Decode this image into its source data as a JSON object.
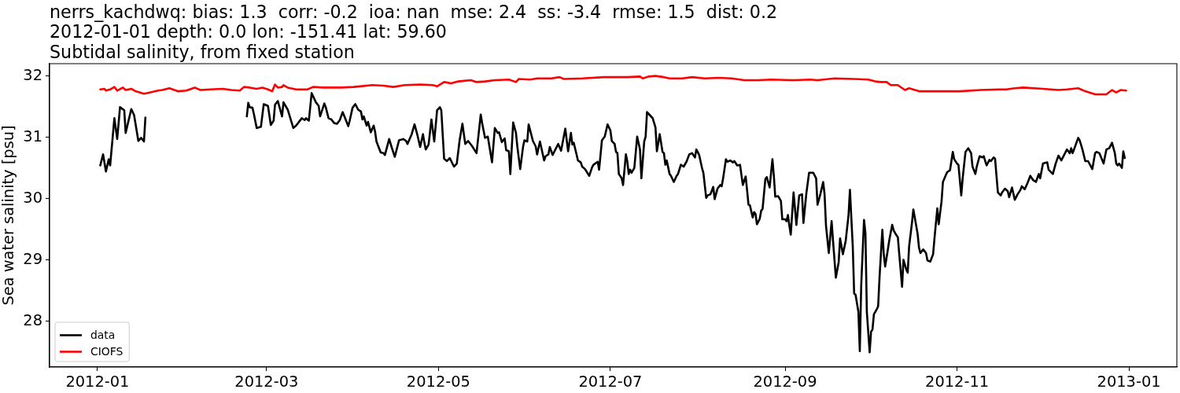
{
  "chart_data": {
    "type": "line",
    "title": "nerrs_kachdwq: bias: 1.3  corr: -0.2  ioa: nan  mse: 2.4  ss: -3.4  rmse: 1.5  dist: 0.2\n2012-01-01 depth: 0.0 lon: -151.41 lat: 59.60\nSubtidal salinity, from fixed station",
    "ylabel": "Sea water salinity [psu]",
    "xlim": [
      "2011-12-15",
      "2013-01-18"
    ],
    "xticks": [
      "2012-01",
      "2012-03",
      "2012-05",
      "2012-07",
      "2012-09",
      "2012-11",
      "2013-01"
    ],
    "ylim": [
      27.25,
      32.2
    ],
    "yticks": [
      28,
      29,
      30,
      31,
      32
    ],
    "legend": "bottom left",
    "series": [
      {
        "name": "data",
        "color": "#000000",
        "x": [
          "2012-01-02",
          "2012-01-03",
          "2012-01-04",
          "2012-01-05",
          "2012-01-05T12:00",
          "2012-01-07",
          "2012-01-08",
          "2012-01-09",
          "2012-01-10T12:00",
          "2012-01-11",
          "2012-01-13",
          "2012-01-14",
          "2012-01-15T12:00",
          "2012-01-16T12:00",
          "2012-01-17T12:00",
          "2012-01-18",
          "2012-02-05",
          "2012-02-23",
          "2012-02-23T12:00",
          "2012-02-24",
          "2012-02-25",
          "2012-02-25T12:00",
          "2012-02-26T12:00",
          "2012-02-28",
          "2012-02-29",
          "2012-03-01T12:00",
          "2012-03-02T12:00",
          "2012-03-03T12:00",
          "2012-03-04",
          "2012-03-05",
          "2012-03-06T12:00",
          "2012-03-07",
          "2012-03-08T12:00",
          "2012-03-10T12:00",
          "2012-03-11T12:00",
          "2012-03-13T12:00",
          "2012-03-14T12:00",
          "2012-03-15",
          "2012-03-16",
          "2012-03-17",
          "2012-03-18T12:00",
          "2012-03-19T12:00",
          "2012-03-20",
          "2012-03-21T12:00",
          "2012-03-22",
          "2012-03-23",
          "2012-03-24",
          "2012-03-25",
          "2012-03-26",
          "2012-03-27",
          "2012-03-28",
          "2012-03-30",
          "2012-03-30T12:00",
          "2012-03-31T12:00",
          "2012-04-01T12:00",
          "2012-04-02T12:00",
          "2012-04-03T12:00",
          "2012-04-04",
          "2012-04-04T12:00",
          "2012-04-05T12:00",
          "2012-04-06",
          "2012-04-07",
          "2012-04-08",
          "2012-04-08T12:00",
          "2012-04-09",
          "2012-04-10T12:00",
          "2012-04-11T12:00",
          "2012-04-12",
          "2012-04-13T12:00",
          "2012-04-14T12:00",
          "2012-04-15T12:00",
          "2012-04-17",
          "2012-04-18T12:00",
          "2012-04-19T12:00",
          "2012-04-20",
          "2012-04-21T12:00",
          "2012-04-22T12:00",
          "2012-04-23T12:00",
          "2012-04-24T12:00",
          "2012-04-25T12:00",
          "2012-04-26",
          "2012-04-26T12:00",
          "2012-04-27T12:00",
          "2012-04-28T12:00",
          "2012-04-29T12:00",
          "2012-04-30T12:00",
          "2012-05-01T12:00",
          "2012-05-02",
          "2012-05-03",
          "2012-05-04",
          "2012-05-05",
          "2012-05-06T12:00",
          "2012-05-07T12:00",
          "2012-05-08T12:00",
          "2012-05-09T12:00",
          "2012-05-10T12:00",
          "2012-05-11T12:00",
          "2012-05-13",
          "2012-05-14T12:00",
          "2012-05-16",
          "2012-05-16T12:00",
          "2012-05-17T12:00",
          "2012-05-18T12:00",
          "2012-05-20",
          "2012-05-21",
          "2012-05-22",
          "2012-05-22T12:00",
          "2012-05-23T12:00",
          "2012-05-24T12:00",
          "2012-05-25",
          "2012-05-26",
          "2012-05-26T12:00",
          "2012-05-27T12:00",
          "2012-05-28T12:00",
          "2012-05-29",
          "2012-05-30",
          "2012-05-31",
          "2012-05-31T12:00",
          "2012-06-01T12:00",
          "2012-06-02",
          "2012-06-03T12:00",
          "2012-06-04T12:00",
          "2012-06-05",
          "2012-06-06",
          "2012-06-07T12:00",
          "2012-06-08",
          "2012-06-09",
          "2012-06-09T12:00",
          "2012-06-10T12:00",
          "2012-06-11T12:00",
          "2012-06-12T12:00",
          "2012-06-13T12:00",
          "2012-06-15",
          "2012-06-16",
          "2012-06-17",
          "2012-06-17T12:00",
          "2012-06-18",
          "2012-06-19T12:00",
          "2012-06-20T12:00",
          "2012-06-21",
          "2012-06-22",
          "2012-06-23T12:00",
          "2012-06-24T12:00",
          "2012-06-25",
          "2012-06-26T12:00",
          "2012-06-27",
          "2012-06-28",
          "2012-06-29",
          "2012-06-30",
          "2012-07-01",
          "2012-07-01T12:00",
          "2012-07-02T12:00",
          "2012-07-03",
          "2012-07-03T12:00",
          "2012-07-04",
          "2012-07-05",
          "2012-07-05T12:00",
          "2012-07-06T12:00",
          "2012-07-07",
          "2012-07-07T12:00",
          "2012-07-08",
          "2012-07-08T12:00",
          "2012-07-09T12:00",
          "2012-07-10T12:00",
          "2012-07-11T12:00",
          "2012-07-12",
          "2012-07-13",
          "2012-07-13T12:00",
          "2012-07-14",
          "2012-07-15",
          "2012-07-16",
          "2012-07-17",
          "2012-07-17T12:00",
          "2012-07-18T12:00",
          "2012-07-19T12:00",
          "2012-07-20",
          "2012-07-20T12:00",
          "2012-07-21",
          "2012-07-22",
          "2012-07-22T12:00",
          "2012-07-23T12:00",
          "2012-07-24T12:00",
          "2012-07-25",
          "2012-07-26",
          "2012-07-27",
          "2012-07-28",
          "2012-07-29",
          "2012-07-30",
          "2012-07-31",
          "2012-07-31T12:00",
          "2012-08-01T12:00",
          "2012-08-02T12:00",
          "2012-08-03",
          "2012-08-04",
          "2012-08-04T12:00",
          "2012-08-05T12:00",
          "2012-08-06T12:00",
          "2012-08-07",
          "2012-08-08",
          "2012-08-09",
          "2012-08-09T12:00",
          "2012-08-10",
          "2012-08-11",
          "2012-08-11T12:00",
          "2012-08-12T12:00",
          "2012-08-13T12:00",
          "2012-08-14",
          "2012-08-15",
          "2012-08-16",
          "2012-08-17",
          "2012-08-18",
          "2012-08-18T12:00",
          "2012-08-19",
          "2012-08-19T12:00",
          "2012-08-20T12:00",
          "2012-08-21",
          "2012-08-21T12:00",
          "2012-08-22",
          "2012-08-23",
          "2012-08-23T12:00",
          "2012-08-24",
          "2012-08-25",
          "2012-08-25T12:00",
          "2012-08-26T12:00",
          "2012-08-27T12:00",
          "2012-08-28",
          "2012-08-28T12:00",
          "2012-08-29T12:00",
          "2012-08-30T12:00",
          "2012-08-31",
          "2012-09-01",
          "2012-09-01T12:00",
          "2012-09-02",
          "2012-09-02T12:00",
          "2012-09-03",
          "2012-09-04",
          "2012-09-05",
          "2012-09-06",
          "2012-09-07",
          "2012-09-07T12:00",
          "2012-09-08T12:00",
          "2012-09-09T12:00",
          "2012-09-11",
          "2012-09-12",
          "2012-09-12T12:00",
          "2012-09-13T12:00",
          "2012-09-14T12:00",
          "2012-09-15",
          "2012-09-15T12:00",
          "2012-09-16T12:00",
          "2012-09-17T12:00",
          "2012-09-18",
          "2012-09-19",
          "2012-09-20",
          "2012-09-20T12:00",
          "2012-09-21T12:00",
          "2012-09-22T12:00",
          "2012-09-23T12:00",
          "2012-09-24",
          "2012-09-25",
          "2012-09-25T12:00",
          "2012-09-26",
          "2012-09-27",
          "2012-09-27T12:00",
          "2012-09-28",
          "2012-09-29",
          "2012-09-29T12:00",
          "2012-09-30",
          "2012-10-01",
          "2012-10-01T12:00",
          "2012-10-02",
          "2012-10-02T12:00",
          "2012-10-03T12:00",
          "2012-10-04",
          "2012-10-04T12:00",
          "2012-10-05T12:00",
          "2012-10-06",
          "2012-10-06T12:00",
          "2012-10-07T12:00",
          "2012-10-08",
          "2012-10-09",
          "2012-10-09T12:00",
          "2012-10-10T12:00",
          "2012-10-11",
          "2012-10-11T12:00",
          "2012-10-12T12:00",
          "2012-10-13",
          "2012-10-14",
          "2012-10-14T12:00",
          "2012-10-15",
          "2012-10-16",
          "2012-10-16T12:00",
          "2012-10-17T12:00",
          "2012-10-18",
          "2012-10-18T12:00",
          "2012-10-19",
          "2012-10-20",
          "2012-10-21",
          "2012-10-21T12:00",
          "2012-10-22T12:00",
          "2012-10-23T12:00",
          "2012-10-24",
          "2012-10-25",
          "2012-10-25T12:00",
          "2012-10-26T12:00",
          "2012-10-27",
          "2012-10-28",
          "2012-10-28T12:00",
          "2012-10-29T12:00",
          "2012-10-30T12:00",
          "2012-10-31",
          "2012-11-01",
          "2012-11-01T12:00",
          "2012-11-02T12:00",
          "2012-11-03",
          "2012-11-04",
          "2012-11-05",
          "2012-11-06",
          "2012-11-06T12:00",
          "2012-11-07T12:00",
          "2012-11-08",
          "2012-11-09",
          "2012-11-10",
          "2012-11-10T12:00",
          "2012-11-11",
          "2012-11-11T12:00",
          "2012-11-12T12:00",
          "2012-11-13",
          "2012-11-14",
          "2012-11-14T12:00",
          "2012-11-15",
          "2012-11-15T12:00",
          "2012-11-16T12:00",
          "2012-11-17",
          "2012-11-18",
          "2012-11-19",
          "2012-11-19T12:00",
          "2012-11-20T12:00",
          "2012-11-21T12:00",
          "2012-11-22T12:00",
          "2012-11-23T12:00",
          "2012-11-24",
          "2012-11-25",
          "2012-11-26",
          "2012-11-27",
          "2012-11-28",
          "2012-11-29",
          "2012-11-30",
          "2012-11-30T12:00",
          "2012-12-01T12:00",
          "2012-12-03",
          "2012-12-03T12:00",
          "2012-12-05",
          "2012-12-06",
          "2012-12-07",
          "2012-12-08",
          "2012-12-09",
          "2012-12-10",
          "2012-12-11",
          "2012-12-11T12:00",
          "2012-12-12",
          "2012-12-12T12:00",
          "2012-12-14",
          "2012-12-14T12:00",
          "2012-12-15T12:00",
          "2012-12-16T12:00",
          "2012-12-17T12:00",
          "2012-12-19",
          "2012-12-20",
          "2012-12-20T12:00",
          "2012-12-21T12:00",
          "2012-12-22T12:00",
          "2012-12-23",
          "2012-12-24",
          "2012-12-25",
          "2012-12-26",
          "2012-12-27",
          "2012-12-27T12:00",
          "2012-12-28",
          "2012-12-28T12:00",
          "2012-12-29T12:00",
          "2012-12-30",
          "2012-12-30T12:00"
        ],
        "values": [
          30.54,
          30.72,
          30.44,
          30.64,
          30.54,
          31.31,
          30.97,
          31.49,
          31.44,
          31.07,
          31.46,
          31.36,
          30.94,
          30.99,
          30.93,
          31.32,
          null,
          31.34,
          31.56,
          31.49,
          31.48,
          31.38,
          31.15,
          31.17,
          31.54,
          31.51,
          31.2,
          31.27,
          31.53,
          31.59,
          31.34,
          31.57,
          31.45,
          31.15,
          31.19,
          31.31,
          31.28,
          31.31,
          31.27,
          31.72,
          31.57,
          31.51,
          31.34,
          31.55,
          31.49,
          31.31,
          31.29,
          31.23,
          31.22,
          31.28,
          31.41,
          31.18,
          31.27,
          31.48,
          31.54,
          31.45,
          31.42,
          31.29,
          31.34,
          31.19,
          31.25,
          31.08,
          31.19,
          31.09,
          30.93,
          30.75,
          30.74,
          30.71,
          30.97,
          30.82,
          30.68,
          30.95,
          30.97,
          30.94,
          30.89,
          31.05,
          31.21,
          31.04,
          30.84,
          31.05,
          30.91,
          30.8,
          30.88,
          31.29,
          30.93,
          31.44,
          31.49,
          31.44,
          30.65,
          30.61,
          30.66,
          30.52,
          30.57,
          30.95,
          31.22,
          30.89,
          30.94,
          30.85,
          30.74,
          31.37,
          31.23,
          30.99,
          31.01,
          30.59,
          31.15,
          31.07,
          31.08,
          30.92,
          30.98,
          30.79,
          30.77,
          30.4,
          31.24,
          31.07,
          30.84,
          30.48,
          30.84,
          30.95,
          30.93,
          31.21,
          30.94,
          30.85,
          30.72,
          30.93,
          30.62,
          30.69,
          30.72,
          30.84,
          30.71,
          30.8,
          30.89,
          30.78,
          31.14,
          30.77,
          31.07,
          30.88,
          30.91,
          30.62,
          30.59,
          30.52,
          30.48,
          30.37,
          30.51,
          30.55,
          30.6,
          30.47,
          30.95,
          31.01,
          31.21,
          31.11,
          30.94,
          30.89,
          30.76,
          30.74,
          30.4,
          30.33,
          30.22,
          30.72,
          30.61,
          30.4,
          30.47,
          30.42,
          30.5,
          31.01,
          30.8,
          30.33,
          30.93,
          31.01,
          31.41,
          31.36,
          31.31,
          31.16,
          30.77,
          31.05,
          30.76,
          30.74,
          30.55,
          30.62,
          30.4,
          30.37,
          30.27,
          30.37,
          30.4,
          30.55,
          30.52,
          30.6,
          30.72,
          30.74,
          30.67,
          30.8,
          30.71,
          30.5,
          30.42,
          30.01,
          30.05,
          30.07,
          30.19,
          29.99,
          30.16,
          30.22,
          30.2,
          30.33,
          30.64,
          30.6,
          30.62,
          30.59,
          30.61,
          30.54,
          30.55,
          30.22,
          30.36,
          30.14,
          29.9,
          29.89,
          29.69,
          29.78,
          29.75,
          29.58,
          29.67,
          29.8,
          29.83,
          30.32,
          30.35,
          30.18,
          30.64,
          30.37,
          30.03,
          30.04,
          29.96,
          29.66,
          29.66,
          29.63,
          29.73,
          29.56,
          29.41,
          30.1,
          29.57,
          30.05,
          30.07,
          29.6,
          30.07,
          30.42,
          30.42,
          30.33,
          29.9,
          30.07,
          30.27,
          30.07,
          29.56,
          29.11,
          29.63,
          29.31,
          28.71,
          28.96,
          29.35,
          29.09,
          29.31,
          29.73,
          30.14,
          29.22,
          28.45,
          28.43,
          28.15,
          27.51,
          28.58,
          29.65,
          29.43,
          28.15,
          27.49,
          27.83,
          27.86,
          28.11,
          28.19,
          28.24,
          28.71,
          29.49,
          29.09,
          28.89,
          29.18,
          29.33,
          29.57,
          29.48,
          29.4,
          29.37,
          29.09,
          28.56,
          29.0,
          28.84,
          28.79,
          29.22,
          29.6,
          29.82,
          29.56,
          29.43,
          29.2,
          29.11,
          29.17,
          29.11,
          28.99,
          28.97,
          29.09,
          29.35,
          29.84,
          29.58,
          29.95,
          30.27,
          30.38,
          30.43,
          30.46,
          30.76,
          30.64,
          30.57,
          30.55,
          30.05,
          30.33,
          30.76,
          30.82,
          30.74,
          30.52,
          30.4,
          30.52,
          30.69,
          30.67,
          30.69,
          30.61,
          30.54,
          30.63,
          30.61,
          30.67,
          30.65,
          30.37,
          30.1,
          30.05,
          30.1,
          30.16,
          30.12,
          30.02,
          30.18,
          29.98,
          30.07,
          30.14,
          30.2,
          30.15,
          30.25,
          30.37,
          30.3,
          30.27,
          30.4,
          30.33,
          30.57,
          30.59,
          30.47,
          30.4,
          30.57,
          30.7,
          30.62,
          30.71,
          30.8,
          30.74,
          30.82,
          30.74,
          30.8,
          30.99,
          30.95,
          30.8,
          30.61,
          30.61,
          30.48,
          30.74,
          30.76,
          30.74,
          30.63,
          30.57,
          30.8,
          30.82,
          30.91,
          30.74,
          30.57,
          30.54,
          30.57,
          30.5,
          30.77,
          30.66
        ]
      },
      {
        "name": "CIOFS",
        "color": "#ff0000",
        "x": [
          "2012-01-02",
          "2012-01-03T12:00",
          "2012-01-04",
          "2012-01-05T12:00",
          "2012-01-07",
          "2012-01-08",
          "2012-01-10",
          "2012-01-11",
          "2012-01-13",
          "2012-01-14T12:00",
          "2012-01-17T12:00",
          "2012-01-19T12:00",
          "2012-01-22T12:00",
          "2012-01-24",
          "2012-01-26T12:00",
          "2012-01-29T12:00",
          "2012-02-01T12:00",
          "2012-02-04T12:00",
          "2012-02-06T12:00",
          "2012-02-10",
          "2012-02-14T12:00",
          "2012-02-17T12:00",
          "2012-02-20T12:00",
          "2012-02-22",
          "2012-02-24",
          "2012-02-26T12:00",
          "2012-02-28T12:00",
          "2012-03-01T12:00",
          "2012-03-03",
          "2012-03-04",
          "2012-03-05",
          "2012-03-06T12:00",
          "2012-03-07",
          "2012-03-08T12:00",
          "2012-03-11T12:00",
          "2012-03-15T12:00",
          "2012-03-17T12:00",
          "2012-03-21",
          "2012-03-27T12:00",
          "2012-04-01",
          "2012-04-07T12:00",
          "2012-04-11T12:00",
          "2012-04-15",
          "2012-04-19",
          "2012-04-24T12:00",
          "2012-04-29",
          "2012-04-30T12:00",
          "2012-05-03",
          "2012-05-05T12:00",
          "2012-05-08",
          "2012-05-10",
          "2012-05-12T12:00",
          "2012-05-14T12:00",
          "2012-05-17T12:00",
          "2012-05-21",
          "2012-05-26",
          "2012-05-28T12:00",
          "2012-05-29T12:00",
          "2012-06-02T12:00",
          "2012-06-05",
          "2012-06-10",
          "2012-06-13",
          "2012-06-14T12:00",
          "2012-06-21",
          "2012-06-28T12:00",
          "2012-07-05",
          "2012-07-07",
          "2012-07-11T12:00",
          "2012-07-12T12:00",
          "2012-07-14T12:00",
          "2012-07-17",
          "2012-07-20",
          "2012-07-22",
          "2012-07-26T12:00",
          "2012-07-30",
          "2012-08-03T12:00",
          "2012-08-08T12:00",
          "2012-08-13",
          "2012-08-17T12:00",
          "2012-08-22T12:00",
          "2012-08-27",
          "2012-09-03T12:00",
          "2012-09-10",
          "2012-09-12T12:00",
          "2012-09-18T12:00",
          "2012-09-25T12:00",
          "2012-09-30T12:00",
          "2012-10-03",
          "2012-10-05",
          "2012-10-07",
          "2012-10-08T12:00",
          "2012-10-11",
          "2012-10-13T12:00",
          "2012-10-15",
          "2012-10-18T12:00",
          "2012-10-23T12:00",
          "2012-11-02",
          "2012-11-09T12:00",
          "2012-11-16",
          "2012-11-18T12:00",
          "2012-11-21T12:00",
          "2012-11-24T12:00",
          "2012-12-01T12:00",
          "2012-12-07",
          "2012-12-10",
          "2012-12-14",
          "2012-12-16T12:00",
          "2012-12-20",
          "2012-12-24",
          "2012-12-26",
          "2012-12-27T12:00",
          "2012-12-29",
          "2012-12-31"
        ],
        "values": [
          31.78,
          31.79,
          31.76,
          31.78,
          31.82,
          31.76,
          31.81,
          31.77,
          31.79,
          31.75,
          31.71,
          31.73,
          31.76,
          31.77,
          31.8,
          31.75,
          31.76,
          31.81,
          31.77,
          31.78,
          31.79,
          31.77,
          31.76,
          31.82,
          31.81,
          31.79,
          31.81,
          31.78,
          31.75,
          31.86,
          31.81,
          31.82,
          31.85,
          31.81,
          31.78,
          31.78,
          31.82,
          31.81,
          31.81,
          31.82,
          31.85,
          31.84,
          31.82,
          31.85,
          31.86,
          31.85,
          31.83,
          31.9,
          31.88,
          31.91,
          31.92,
          31.93,
          31.9,
          31.91,
          31.93,
          31.94,
          31.9,
          31.95,
          31.94,
          31.96,
          31.96,
          31.98,
          31.95,
          31.96,
          31.98,
          31.98,
          31.98,
          31.99,
          31.96,
          31.99,
          32.0,
          31.98,
          31.96,
          31.96,
          31.98,
          31.96,
          31.97,
          31.96,
          31.93,
          31.93,
          31.94,
          31.93,
          31.94,
          31.93,
          31.96,
          31.95,
          31.94,
          31.91,
          31.9,
          31.9,
          31.85,
          31.85,
          31.77,
          31.8,
          31.75,
          31.75,
          31.75,
          31.77,
          31.78,
          31.78,
          31.8,
          31.81,
          31.79,
          31.77,
          31.78,
          31.8,
          31.75,
          31.7,
          31.7,
          31.77,
          31.73,
          31.77,
          31.76
        ]
      }
    ]
  }
}
